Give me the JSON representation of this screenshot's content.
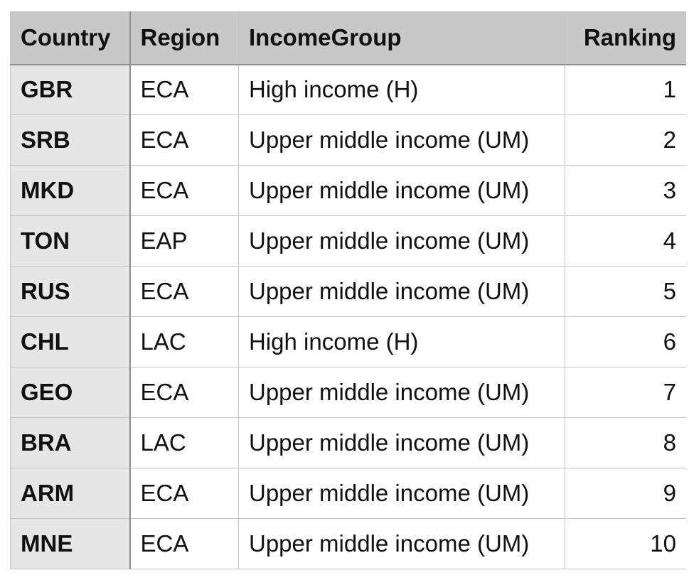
{
  "chart_data": {
    "type": "table",
    "columns": [
      "Country",
      "Region",
      "IncomeGroup",
      "Ranking"
    ],
    "rows": [
      {
        "country": "GBR",
        "region": "ECA",
        "income": "High income (H)",
        "rank": "1"
      },
      {
        "country": "SRB",
        "region": "ECA",
        "income": "Upper middle income (UM)",
        "rank": "2"
      },
      {
        "country": "MKD",
        "region": "ECA",
        "income": "Upper middle income (UM)",
        "rank": "3"
      },
      {
        "country": "TON",
        "region": "EAP",
        "income": "Upper middle income (UM)",
        "rank": "4"
      },
      {
        "country": "RUS",
        "region": "ECA",
        "income": "Upper middle income (UM)",
        "rank": "5"
      },
      {
        "country": "CHL",
        "region": "LAC",
        "income": "High income (H)",
        "rank": "6"
      },
      {
        "country": "GEO",
        "region": "ECA",
        "income": "Upper middle income (UM)",
        "rank": "7"
      },
      {
        "country": "BRA",
        "region": "LAC",
        "income": "Upper middle income (UM)",
        "rank": "8"
      },
      {
        "country": "ARM",
        "region": "ECA",
        "income": "Upper middle income (UM)",
        "rank": "9"
      },
      {
        "country": "MNE",
        "region": "ECA",
        "income": "Upper middle income (UM)",
        "rank": "10"
      }
    ]
  }
}
